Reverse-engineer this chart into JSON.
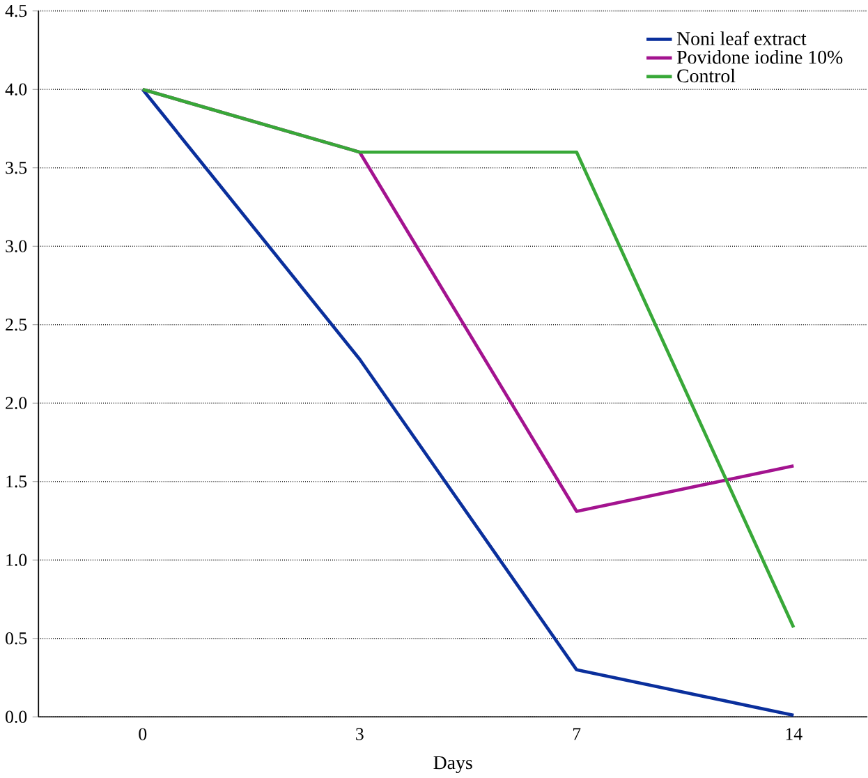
{
  "chart_data": {
    "type": "line",
    "xlabel": "Days",
    "categories": [
      "0",
      "3",
      "7",
      "14"
    ],
    "series": [
      {
        "name": "Noni leaf extract",
        "color": "#0a2f9c",
        "values": [
          4.0,
          2.28,
          0.3,
          0.01
        ]
      },
      {
        "name": "Povidone iodine 10%",
        "color": "#a3138f",
        "values": [
          4.0,
          3.6,
          1.31,
          1.6
        ]
      },
      {
        "name": "Control",
        "color": "#38a838",
        "values": [
          4.0,
          3.6,
          3.6,
          0.57
        ]
      }
    ],
    "ylim": [
      0,
      4.5
    ],
    "yticks": [
      {
        "value": 0,
        "label": "0.0"
      },
      {
        "value": 0.5,
        "label": "0.5"
      },
      {
        "value": 1,
        "label": "1.0"
      },
      {
        "value": 1.5,
        "label": "1.5"
      },
      {
        "value": 2,
        "label": "2.0"
      },
      {
        "value": 2.5,
        "label": "2.5"
      },
      {
        "value": 3,
        "label": "3.0"
      },
      {
        "value": 3.5,
        "label": "3.5"
      },
      {
        "value": 4,
        "label": "4.0"
      },
      {
        "value": 4.5,
        "label": "4.5"
      }
    ],
    "grid": "y",
    "legend": "top right",
    "marker": "none",
    "line_style": "solid"
  }
}
